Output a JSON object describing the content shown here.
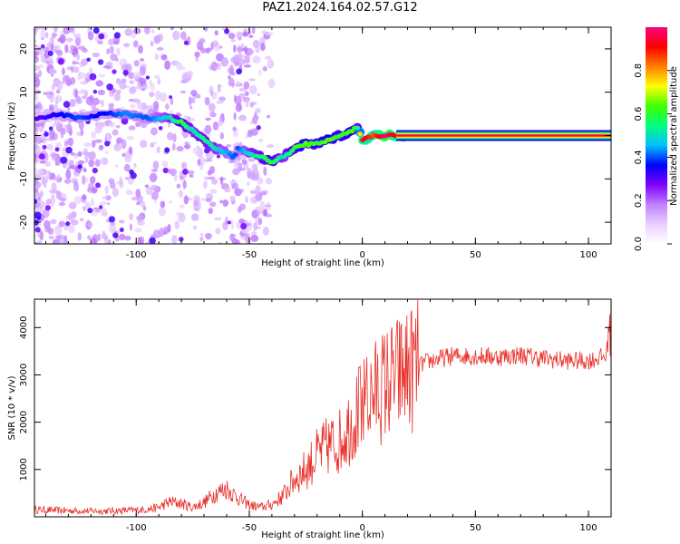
{
  "figure": {
    "title": "PAZ1.2024.164.02.57.G12"
  },
  "chart_data": [
    {
      "type": "heatmap",
      "xlabel": "Height of straight line (km)",
      "ylabel": "Frequency (Hz)",
      "xlim": [
        -145,
        110
      ],
      "ylim": [
        -25,
        25
      ],
      "x_ticks": [
        "-100",
        "-50",
        "0",
        "50",
        "100"
      ],
      "x_tick_values": [
        -100,
        -50,
        0,
        50,
        100
      ],
      "y_ticks": [
        "-20",
        "-10",
        "0",
        "10",
        "20"
      ],
      "y_tick_values": [
        -20,
        -10,
        0,
        10,
        20
      ],
      "ridge": {
        "x": [
          -143,
          -135,
          -125,
          -115,
          -105,
          -95,
          -85,
          -80,
          -75,
          -70,
          -65,
          -60,
          -57,
          -55,
          -50,
          -45,
          -40,
          -35,
          -30,
          -25,
          -20,
          -15,
          -10,
          -5,
          -2,
          0,
          5,
          10,
          15,
          20,
          30,
          40,
          50,
          60,
          70,
          80,
          90,
          100,
          110
        ],
        "y": [
          4,
          5,
          4,
          5,
          5,
          4,
          4,
          3,
          1,
          -1,
          -3,
          -4,
          -5,
          -3,
          -4,
          -5,
          -6,
          -5,
          -3,
          -2,
          -2,
          -1,
          0,
          1,
          2,
          -1,
          0,
          0,
          0,
          0,
          0,
          0,
          0,
          0,
          0,
          0,
          0,
          0,
          0
        ],
        "amplitude": [
          0.15,
          0.2,
          0.25,
          0.2,
          0.28,
          0.25,
          0.35,
          0.45,
          0.35,
          0.4,
          0.35,
          0.3,
          0.25,
          0.25,
          0.35,
          0.4,
          0.45,
          0.35,
          0.45,
          0.5,
          0.45,
          0.5,
          0.45,
          0.5,
          0.4,
          0.8,
          0.7,
          0.85,
          0.75,
          0.9,
          0.95,
          1.0,
          1.0,
          1.0,
          1.0,
          1.0,
          1.0,
          1.0,
          1.0
        ]
      },
      "colorbar": {
        "label": "Normalized spectral amplitude",
        "range": [
          0,
          1
        ],
        "ticks": [
          "0.0",
          "0.2",
          "0.4",
          "0.6",
          "0.8"
        ],
        "tick_values": [
          0,
          0.2,
          0.4,
          0.6,
          0.8
        ],
        "colors": [
          "#ffffff",
          "#e8d0ff",
          "#c080ff",
          "#8000ff",
          "#0000ff",
          "#00c0ff",
          "#00ff80",
          "#40ff00",
          "#ffff00",
          "#ff8000",
          "#ff0000",
          "#ff0080"
        ]
      }
    },
    {
      "type": "line",
      "xlabel": "Height of straight line (km)",
      "ylabel": "SNR (10 * v/v)",
      "xlim": [
        -145,
        110
      ],
      "ylim": [
        0,
        4600
      ],
      "x_ticks": [
        "-100",
        "-50",
        "0",
        "50",
        "100"
      ],
      "x_tick_values": [
        -100,
        -50,
        0,
        50,
        100
      ],
      "y_ticks": [
        "1000",
        "2000",
        "3000",
        "4000"
      ],
      "y_tick_values": [
        1000,
        2000,
        3000,
        4000
      ],
      "series": [
        {
          "color": "#e8302a",
          "x": [
            -145,
            -130,
            -115,
            -100,
            -95,
            -90,
            -85,
            -80,
            -75,
            -70,
            -65,
            -60,
            -55,
            -50,
            -45,
            -40,
            -35,
            -30,
            -25,
            -20,
            -15,
            -10,
            -5,
            -2,
            0,
            2,
            5,
            10,
            15,
            20,
            25,
            30,
            35,
            40,
            50,
            60,
            70,
            80,
            90,
            100,
            108,
            110
          ],
          "y": [
            150,
            130,
            120,
            140,
            160,
            200,
            320,
            280,
            200,
            300,
            500,
            600,
            400,
            250,
            200,
            260,
            450,
            800,
            1000,
            1300,
            1500,
            1600,
            2000,
            2200,
            2300,
            2450,
            2600,
            2800,
            2950,
            3100,
            3200,
            3300,
            3350,
            3400,
            3400,
            3380,
            3420,
            3350,
            3300,
            3300,
            3400,
            4600
          ]
        }
      ]
    }
  ]
}
